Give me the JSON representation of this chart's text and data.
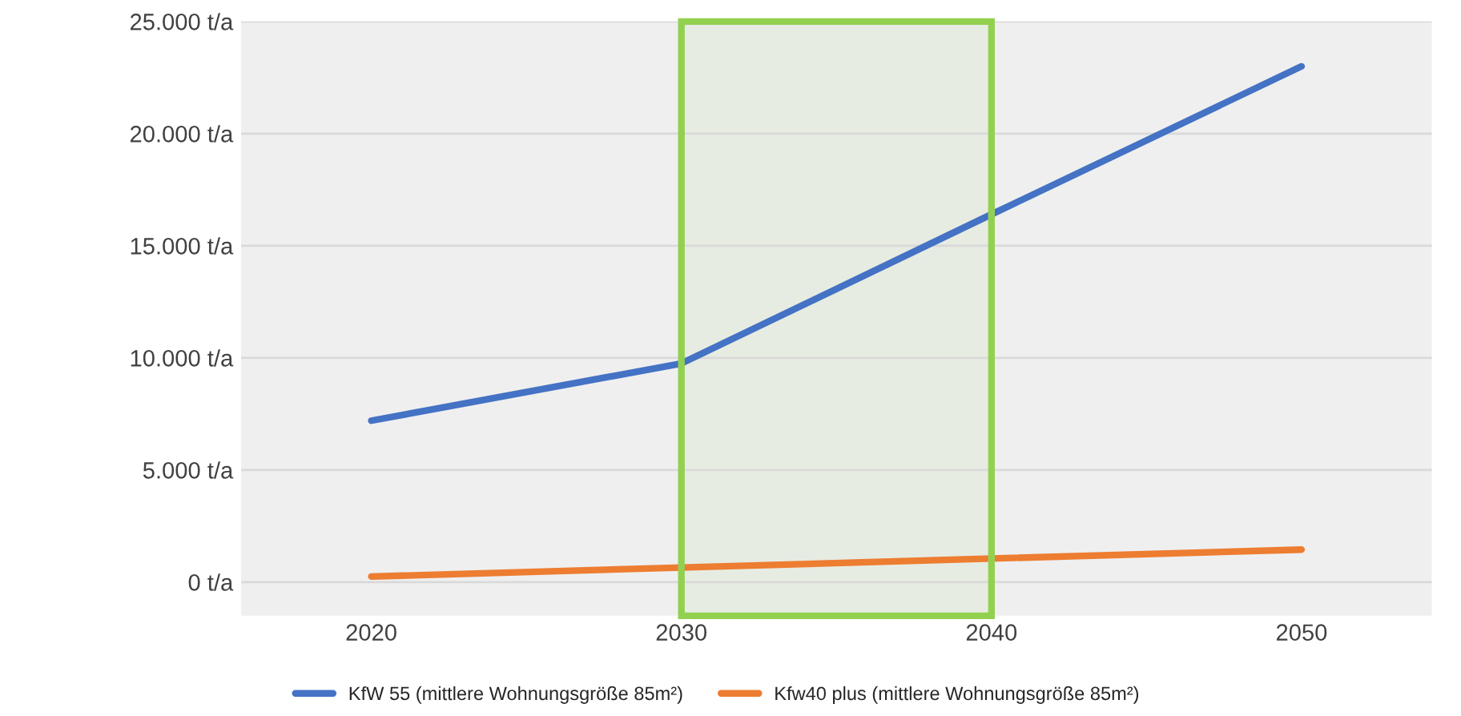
{
  "chart_data": {
    "type": "line",
    "categories": [
      "2020",
      "2030",
      "2040",
      "2050"
    ],
    "series": [
      {
        "name": "KfW 55 (mittlere Wohnungsgröße 85m²)",
        "color": "#4472c4",
        "values": [
          7200,
          9750,
          16400,
          23000
        ]
      },
      {
        "name": "Kfw40 plus (mittlere Wohnungsgröße 85m²)",
        "color": "#ed7d31",
        "values": [
          250,
          650,
          1050,
          1450
        ]
      }
    ],
    "ylim": [
      -1500,
      25000
    ],
    "yticks": [
      {
        "value": 0,
        "label": "0 t/a"
      },
      {
        "value": 5000,
        "label": "5.000 t/a"
      },
      {
        "value": 10000,
        "label": "10.000 t/a"
      },
      {
        "value": 15000,
        "label": "15.000 t/a"
      },
      {
        "value": 20000,
        "label": "20.000 t/a"
      },
      {
        "value": 25000,
        "label": "25.000 t/a"
      }
    ],
    "bands": [
      {
        "axis": "x",
        "from": "2030",
        "to": "2040",
        "color": "#92d050"
      }
    ],
    "grid": "y",
    "legend": "bottom",
    "marker": "none",
    "line_style": "solid"
  }
}
